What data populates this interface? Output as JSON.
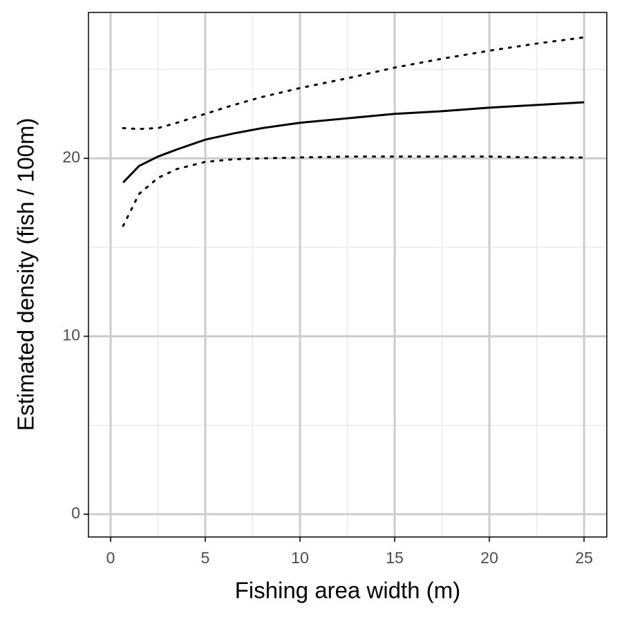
{
  "chart_data": {
    "type": "line",
    "x_label": "Fishing area width (m)",
    "y_label": "Estimated density (fish / 100m)",
    "x": [
      0.66,
      1.5,
      2.5,
      3.5,
      5,
      6.5,
      8,
      10,
      12.5,
      15,
      17.5,
      20,
      22.5,
      25
    ],
    "series": [
      {
        "color": "#000000",
        "dash": "solid",
        "values": [
          18.64,
          19.57,
          20.1,
          20.5,
          21.05,
          21.4,
          21.7,
          22.0,
          22.25,
          22.5,
          22.65,
          22.85,
          23.0,
          23.15
        ]
      },
      {
        "color": "#000000",
        "dash": "dotted",
        "values": [
          16.2,
          18.0,
          18.9,
          19.4,
          19.8,
          19.95,
          20.0,
          20.05,
          20.1,
          20.1,
          20.1,
          20.1,
          20.05,
          20.05
        ]
      },
      {
        "color": "#000000",
        "dash": "dotted",
        "values": [
          21.7,
          21.65,
          21.7,
          22.0,
          22.5,
          23.0,
          23.45,
          23.95,
          24.5,
          25.1,
          25.6,
          26.05,
          26.45,
          26.8
        ]
      }
    ],
    "xlim": [
      -1.17,
      26.2
    ],
    "xticks": [
      0,
      5,
      10,
      15,
      20,
      25
    ],
    "ylim": [
      -1.28,
      28.2
    ],
    "yticks": [
      0,
      10,
      20
    ],
    "grid": true,
    "minor_grid": true
  }
}
